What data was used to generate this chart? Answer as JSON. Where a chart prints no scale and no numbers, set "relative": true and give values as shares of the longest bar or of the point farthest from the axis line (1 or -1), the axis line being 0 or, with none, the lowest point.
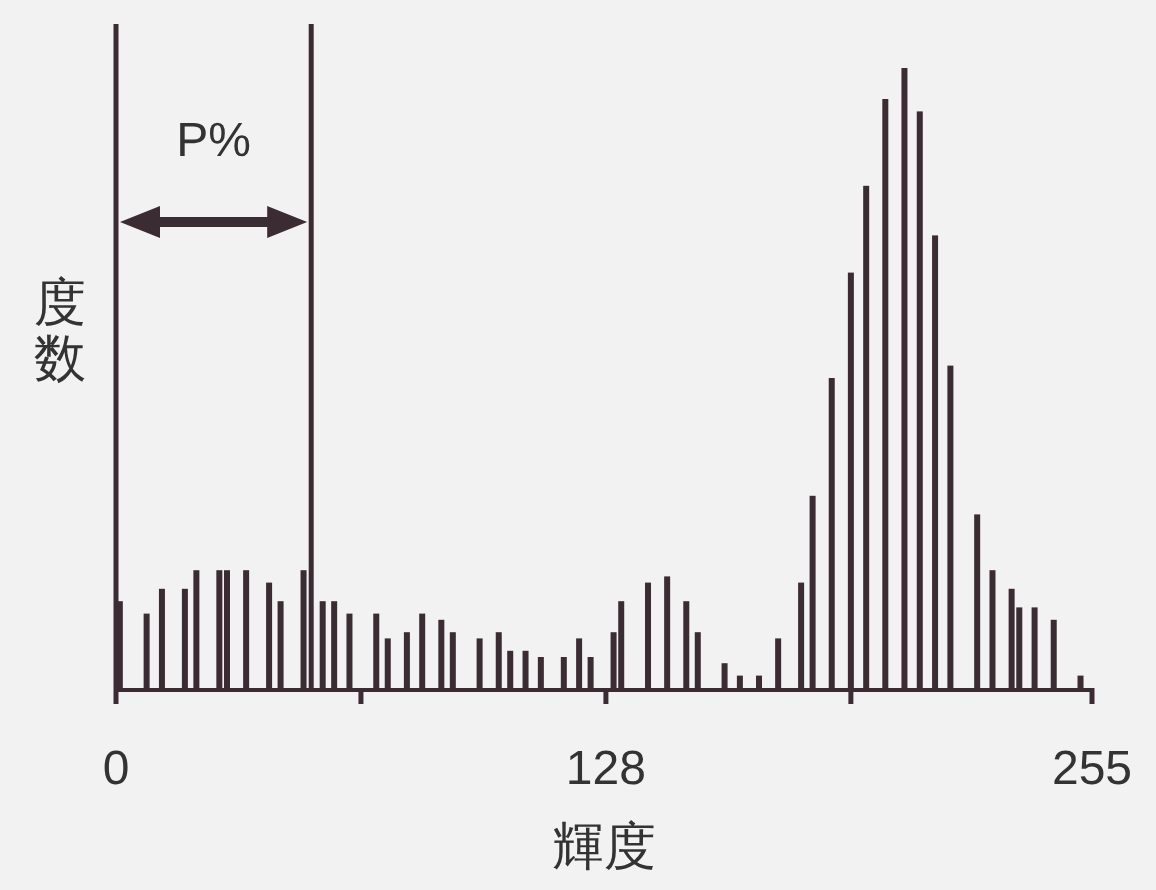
{
  "chart_data": {
    "type": "bar",
    "relative": true,
    "xlabel": "輝度",
    "ylabel": "度数",
    "color": "#3b2b33",
    "x": [
      1,
      8,
      12,
      18,
      21,
      27,
      29,
      34,
      40,
      43,
      49,
      54,
      57,
      61,
      68,
      71,
      76,
      80,
      85,
      88,
      95,
      100,
      103,
      107,
      111,
      117,
      121,
      124,
      130,
      132,
      139,
      144,
      149,
      152,
      159,
      163,
      168,
      173,
      179,
      182,
      187,
      192,
      196,
      201,
      206,
      210,
      214,
      218,
      225,
      229,
      234,
      236,
      240,
      245,
      252
    ],
    "values": [
      0.14,
      0.12,
      0.16,
      0.16,
      0.19,
      0.19,
      0.19,
      0.19,
      0.17,
      0.14,
      0.19,
      0.14,
      0.14,
      0.12,
      0.12,
      0.08,
      0.09,
      0.12,
      0.11,
      0.09,
      0.08,
      0.09,
      0.06,
      0.06,
      0.05,
      0.05,
      0.08,
      0.05,
      0.09,
      0.14,
      0.17,
      0.18,
      0.14,
      0.09,
      0.04,
      0.02,
      0.02,
      0.08,
      0.17,
      0.31,
      0.5,
      0.67,
      0.81,
      0.95,
      1,
      0.93,
      0.73,
      0.52,
      0.28,
      0.19,
      0.16,
      0.13,
      0.13,
      0.11,
      0.02
    ],
    "xlim": [
      0,
      255
    ],
    "xticks": [
      0,
      {
        "value": 64,
        "label": null
      },
      128,
      {
        "value": 192,
        "label": null
      },
      255
    ],
    "ref_lines": [
      {
        "axis": "x",
        "value": 0
      },
      {
        "axis": "x",
        "value": 51
      }
    ],
    "annotations": [
      "P%"
    ]
  }
}
